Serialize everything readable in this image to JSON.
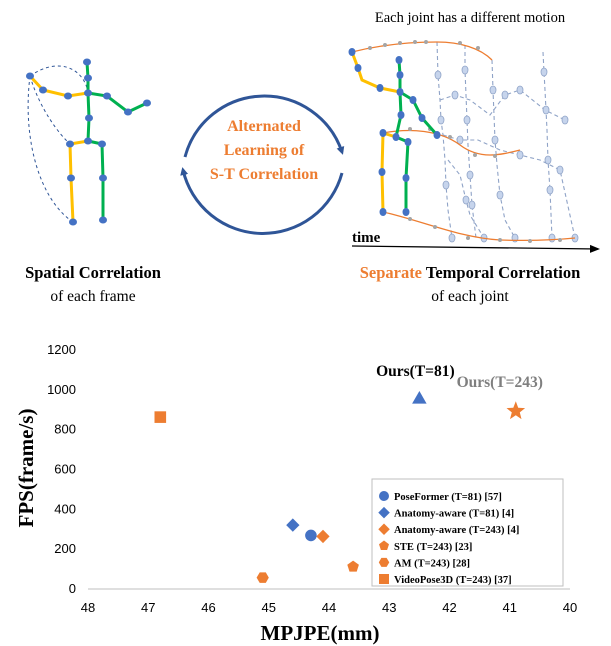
{
  "top": {
    "motion_caption": "Each joint has a different motion",
    "center_label_lines": [
      "Alternated",
      "Learning of",
      "S-T Correlation"
    ],
    "time_label": "time",
    "spatial_title": "Spatial Correlation",
    "spatial_sub": "of each frame",
    "temporal_prefix": "Separate",
    "temporal_title": "Temporal Correlation",
    "temporal_sub": "of each joint"
  },
  "colors": {
    "accent_orange": "#ED7D31",
    "arrow_blue": "#2F5597",
    "limb_green": "#00B050",
    "limb_yellow": "#FFC000",
    "joint_blue": "#4472C4",
    "ghost": "#9DB3D6",
    "traj_orange": "#ED7D31",
    "traj_dots": "#A5A5A5"
  },
  "chart_data": {
    "type": "scatter",
    "xlabel": "MPJPE(mm)",
    "ylabel": "FPS(frame/s)",
    "xlim": [
      48,
      40
    ],
    "ylim": [
      0,
      1200
    ],
    "x_ticks": [
      "48",
      "47",
      "46",
      "45",
      "44",
      "43",
      "42",
      "41",
      "40"
    ],
    "y_ticks": [
      "0",
      "200",
      "400",
      "600",
      "800",
      "1000",
      "1200"
    ],
    "x_reversed": true,
    "grid": false,
    "legend_position": "bottom-right",
    "series": [
      {
        "name": "PoseFormer (T=81) [57]",
        "marker": "circle",
        "color": "#4472C4",
        "x": [
          44.3
        ],
        "y": [
          269
        ]
      },
      {
        "name": "Anatomy-aware (T=81) [4]",
        "marker": "diamond",
        "color": "#4472C4",
        "x": [
          44.6
        ],
        "y": [
          321
        ]
      },
      {
        "name": "Anatomy-aware (T=243) [4]",
        "marker": "diamond",
        "color": "#ED7D31",
        "x": [
          44.1
        ],
        "y": [
          264
        ]
      },
      {
        "name": "STE (T=243) [23]",
        "marker": "pentagon",
        "color": "#ED7D31",
        "x": [
          43.6
        ],
        "y": [
          112
        ]
      },
      {
        "name": "AM (T=243) [28]",
        "marker": "hexagon",
        "color": "#ED7D31",
        "x": [
          45.1
        ],
        "y": [
          57
        ]
      },
      {
        "name": "VideoPose3D (T=243) [37]",
        "marker": "square",
        "color": "#ED7D31",
        "x": [
          46.8
        ],
        "y": [
          863
        ]
      }
    ],
    "ours": [
      {
        "label": "Ours(T=81)",
        "marker": "triangle",
        "color": "#4472C4",
        "label_color": "#000000",
        "x": 42.5,
        "y": 959
      },
      {
        "label": "Ours(T=243)",
        "marker": "star",
        "color": "#ED7D31",
        "label_color": "#7F7F7F",
        "x": 40.9,
        "y": 893
      }
    ]
  }
}
